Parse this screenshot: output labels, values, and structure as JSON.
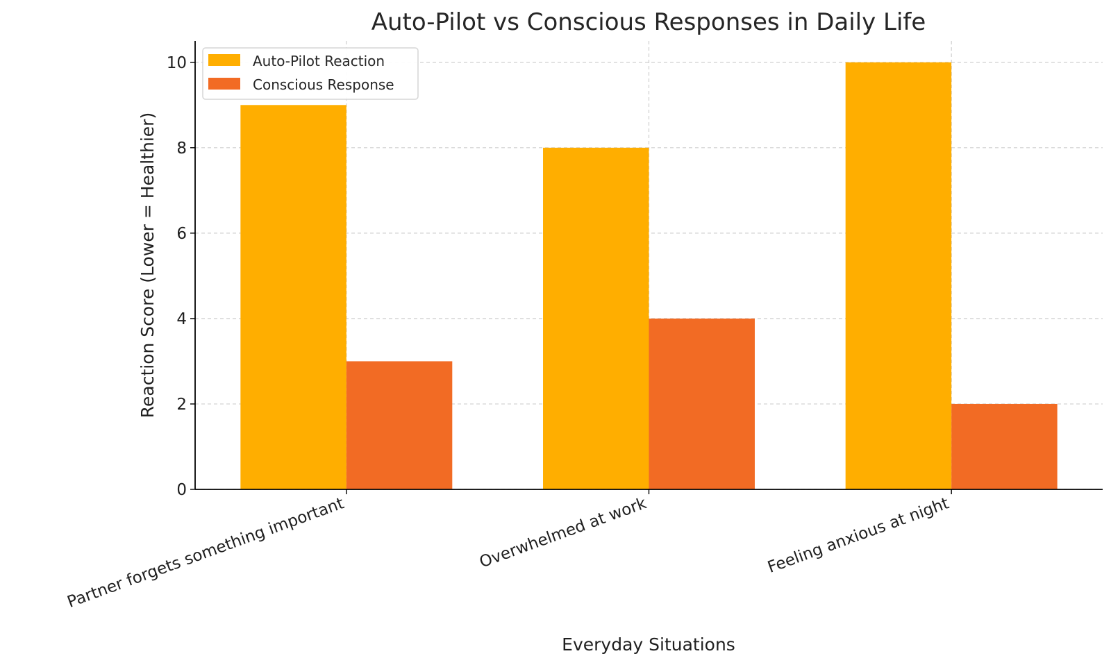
{
  "chart_data": {
    "type": "bar",
    "title": "Auto-Pilot vs Conscious Responses in Daily Life",
    "xlabel": "Everyday Situations",
    "ylabel": "Reaction Score (Lower = Healthier)",
    "categories": [
      "Partner forgets something important",
      "Overwhelmed at work",
      "Feeling anxious at night"
    ],
    "series": [
      {
        "name": "Auto-Pilot Reaction",
        "values": [
          9,
          8,
          10
        ],
        "color": "#FFAE00"
      },
      {
        "name": "Conscious Response",
        "values": [
          3,
          4,
          2
        ],
        "color": "#F26B24"
      }
    ],
    "ylim": [
      0,
      10.5
    ],
    "yticks": [
      0,
      2,
      4,
      6,
      8,
      10
    ],
    "grid": true,
    "legend_position": "top-left"
  }
}
